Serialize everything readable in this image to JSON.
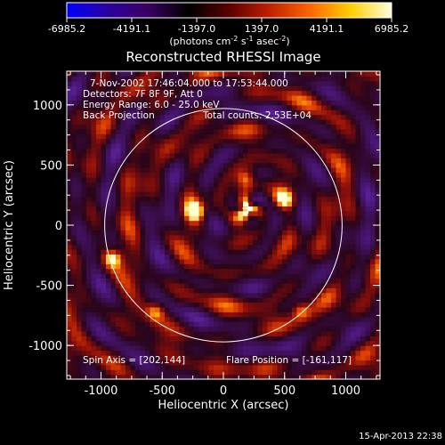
{
  "colorbar": {
    "ticks": [
      "-6985.2",
      "-4191.1",
      "-1397.0",
      "1397.0",
      "4191.1",
      "6985.2"
    ],
    "unit_prefix": "(photons cm",
    "unit_exp1": "-2",
    "unit_mid": " s",
    "unit_exp2": "-1",
    "unit_mid2": " asec",
    "unit_exp3": "-2",
    "unit_suffix": ")",
    "colors": [
      "#0000ff",
      "#2a00a0",
      "#3a0060",
      "#000000",
      "#5a0000",
      "#c02000",
      "#ff6600",
      "#ffd000",
      "#ffffe0"
    ]
  },
  "chart_data": {
    "type": "heatmap",
    "title": "Reconstructed RHESSI Image",
    "xlabel": "Heliocentric X (arcsec)",
    "ylabel": "Heliocentric Y (arcsec)",
    "xlim": [
      -1280,
      1280
    ],
    "ylim": [
      -1280,
      1280
    ],
    "x_ticks": [
      -1000,
      -500,
      0,
      500,
      1000
    ],
    "y_ticks": [
      -1000,
      -500,
      0,
      500,
      1000
    ],
    "x_tick_labels": [
      "-1000",
      "-500",
      "0",
      "500",
      "1000"
    ],
    "y_tick_labels": [
      "-1000",
      "-500",
      "0",
      "500",
      "1000"
    ],
    "value_range": [
      -6985.2,
      6985.2
    ],
    "solar_limb_radius": 970,
    "flare_position": [
      -161,
      117
    ],
    "cross_marker": [
      200,
      140
    ],
    "annotations": {
      "time": "7-Nov-2002 17:46:04.000 to 17:53:44.000",
      "detectors": "Detectors: 7F 8F 9F, Att 0",
      "energy": "Energy Range: 6.0 - 25.0 keV",
      "method": "Back Projection",
      "counts": "Total counts: 2.53E+04",
      "spin_axis": "Spin Axis = [202,144]",
      "flare": "Flare Position = [-161,117]"
    },
    "bright_sources": [
      {
        "x": 200,
        "y": 140,
        "value": 6985
      },
      {
        "x": -230,
        "y": 120,
        "value": 6500
      },
      {
        "x": 500,
        "y": 220,
        "value": 6000
      },
      {
        "x": 180,
        "y": 390,
        "value": 5800
      },
      {
        "x": -900,
        "y": -270,
        "value": 6200
      },
      {
        "x": 630,
        "y": -700,
        "value": 5000
      },
      {
        "x": -550,
        "y": -710,
        "value": 4800
      }
    ]
  },
  "footer": {
    "timestamp": "15-Apr-2013 22:38"
  }
}
